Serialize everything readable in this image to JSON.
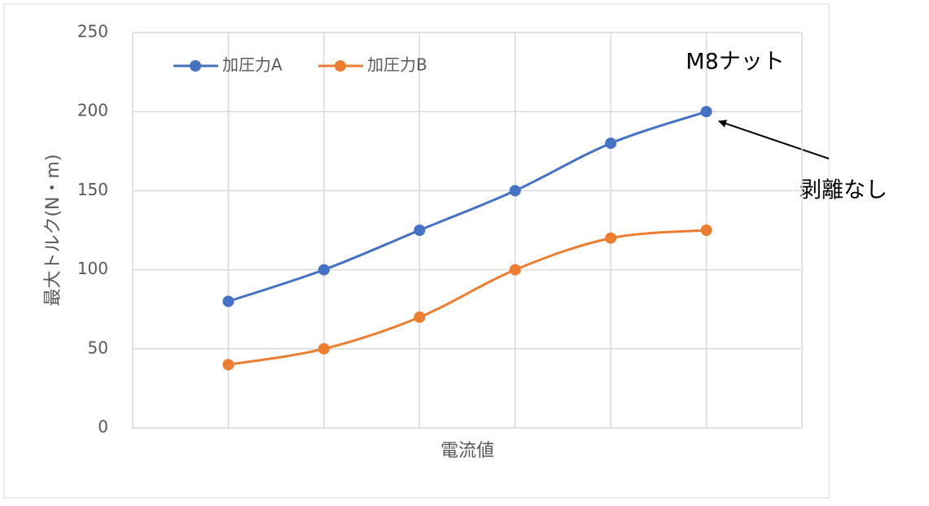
{
  "chart_data": {
    "type": "line",
    "title": null,
    "x_label": "電流値",
    "y_label": "最大トルク(N・m)",
    "categories": [
      null,
      null,
      null,
      null,
      null,
      null
    ],
    "series": [
      {
        "name": "加圧力A",
        "color": "#4472c4",
        "values": [
          80,
          100,
          125,
          150,
          180,
          200
        ]
      },
      {
        "name": "加圧力B",
        "color": "#ed7d31",
        "values": [
          40,
          50,
          70,
          100,
          120,
          125
        ]
      }
    ],
    "ylim": [
      0,
      250
    ],
    "yticks": [
      0,
      50,
      100,
      150,
      200,
      250
    ],
    "grid": true,
    "smooth": true,
    "legend": "top-left",
    "annotations": [
      "M8ナット",
      "剥離なし"
    ]
  }
}
